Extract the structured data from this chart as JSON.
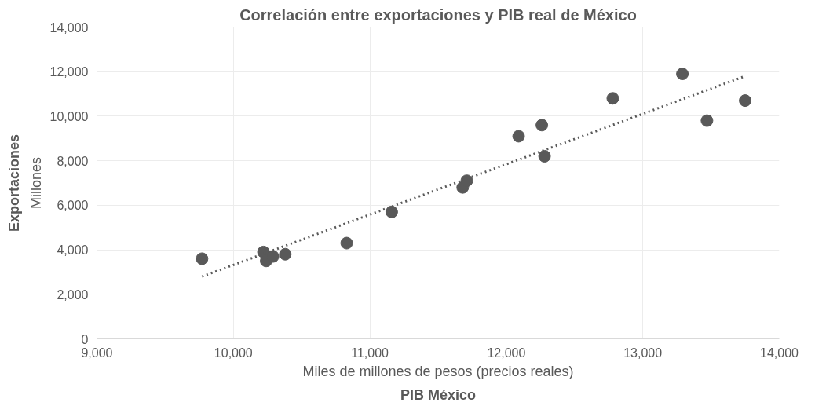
{
  "chart_data": {
    "type": "scatter",
    "title": "Correlación entre exportaciones y PIB real de México",
    "xlabel": "PIB México",
    "ylabel": "Exportaciones",
    "annotations": [
      "Miles de millones de pesos (precios reales)",
      "Millones"
    ],
    "xlim": [
      9000,
      14000
    ],
    "xticks": [
      {
        "value": 9000,
        "label": "9,000"
      },
      {
        "value": 10000,
        "label": "10,000"
      },
      {
        "value": 11000,
        "label": "11,000"
      },
      {
        "value": 12000,
        "label": "12,000"
      },
      {
        "value": 13000,
        "label": "13,000"
      },
      {
        "value": 14000,
        "label": "14,000"
      }
    ],
    "ylim": [
      0,
      14000
    ],
    "yticks": [
      0,
      {
        "value": 2000,
        "label": "2,000"
      },
      {
        "value": 4000,
        "label": "4,000"
      },
      {
        "value": 6000,
        "label": "6,000"
      },
      {
        "value": 8000,
        "label": "8,000"
      },
      {
        "value": 10000,
        "label": "10,000"
      },
      {
        "value": 12000,
        "label": "12,000"
      },
      {
        "value": 14000,
        "label": "14,000"
      }
    ],
    "grid": true,
    "series": [
      {
        "marker": "circle",
        "color": "#595959",
        "x": [
          9770,
          10220,
          10240,
          10290,
          10380,
          10830,
          11160,
          11680,
          11710,
          12090,
          12260,
          12280,
          12780,
          13290,
          13470,
          13750
        ],
        "values": [
          3600,
          3900,
          3500,
          3700,
          3800,
          4300,
          5700,
          6800,
          7100,
          9100,
          9600,
          8200,
          10800,
          11900,
          9800,
          10700
        ]
      },
      {
        "type": "line",
        "marker": "none",
        "color": "#595959",
        "line_style": "dotted",
        "x": [
          9770,
          13750
        ],
        "values": [
          2800,
          11800
        ]
      }
    ]
  }
}
